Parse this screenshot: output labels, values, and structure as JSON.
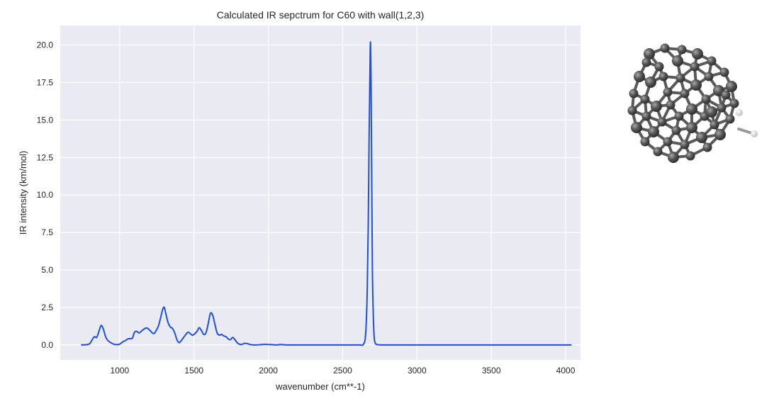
{
  "chart_data": {
    "type": "line",
    "title": "Calculated IR sepctrum for C60 with wall(1,2,3)",
    "xlabel": "wavenumber (cm**-1)",
    "ylabel": "IR intensity (km/mol)",
    "xlim": [
      600,
      4100
    ],
    "ylim": [
      -1.0,
      21.3
    ],
    "xticks": [
      1000,
      1500,
      2000,
      2500,
      3000,
      3500,
      4000
    ],
    "yticks": [
      0.0,
      2.5,
      5.0,
      7.5,
      10.0,
      12.5,
      15.0,
      17.5,
      20.0
    ],
    "xtick_labels": [
      "1000",
      "1500",
      "2000",
      "2500",
      "3000",
      "3500",
      "4000"
    ],
    "ytick_labels": [
      "0.0",
      "2.5",
      "5.0",
      "7.5",
      "10.0",
      "12.5",
      "15.0",
      "17.5",
      "20.0"
    ],
    "grid": true,
    "background": "#eaeaf2",
    "series": [
      {
        "color": "#1f4fe0",
        "x": [
          740,
          780,
          800,
          815,
          830,
          845,
          860,
          875,
          890,
          905,
          920,
          940,
          960,
          980,
          1000,
          1020,
          1040,
          1055,
          1070,
          1085,
          1100,
          1115,
          1130,
          1150,
          1170,
          1185,
          1200,
          1215,
          1230,
          1245,
          1260,
          1275,
          1290,
          1300,
          1310,
          1325,
          1340,
          1355,
          1370,
          1385,
          1400,
          1415,
          1430,
          1445,
          1460,
          1475,
          1490,
          1505,
          1520,
          1535,
          1550,
          1565,
          1580,
          1595,
          1610,
          1625,
          1640,
          1655,
          1670,
          1685,
          1700,
          1715,
          1730,
          1745,
          1760,
          1775,
          1790,
          1805,
          1820,
          1840,
          1860,
          1880,
          1900,
          1920,
          1950,
          1980,
          2020,
          2060,
          2080,
          2120,
          2200,
          2400,
          2600,
          2640,
          2655,
          2665,
          2672,
          2678,
          2683,
          2687,
          2691,
          2695,
          2700,
          2706,
          2712,
          2720,
          2735,
          2760,
          2800,
          3000,
          3500,
          4040
        ],
        "y": [
          0.0,
          0.02,
          0.1,
          0.35,
          0.55,
          0.5,
          0.9,
          1.3,
          1.05,
          0.55,
          0.3,
          0.15,
          0.05,
          0.02,
          0.05,
          0.2,
          0.3,
          0.4,
          0.42,
          0.45,
          0.85,
          0.9,
          0.8,
          0.95,
          1.1,
          1.12,
          1.0,
          0.85,
          0.75,
          0.95,
          1.25,
          1.8,
          2.4,
          2.5,
          2.1,
          1.5,
          1.2,
          1.1,
          0.8,
          0.35,
          0.15,
          0.3,
          0.5,
          0.7,
          0.85,
          0.75,
          0.65,
          0.75,
          0.9,
          1.15,
          0.95,
          0.7,
          0.8,
          1.4,
          2.1,
          2.0,
          1.4,
          0.8,
          0.65,
          0.7,
          0.6,
          0.55,
          0.4,
          0.35,
          0.5,
          0.35,
          0.15,
          0.05,
          0.03,
          0.1,
          0.08,
          0.02,
          0.0,
          0.0,
          0.02,
          0.04,
          0.02,
          0.0,
          0.03,
          0.0,
          0.0,
          0.0,
          0.0,
          0.05,
          0.8,
          3.5,
          8.0,
          14.0,
          17.8,
          20.2,
          17.5,
          12.0,
          5.0,
          2.0,
          0.5,
          0.1,
          0.02,
          0.0,
          0.0,
          0.0,
          0.0,
          0.0
        ]
      }
    ]
  }
}
